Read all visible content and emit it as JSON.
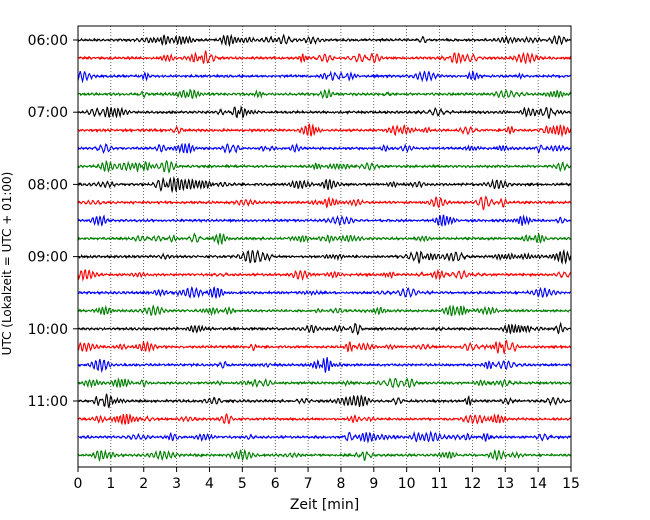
{
  "chart_data": {
    "type": "line",
    "title": "",
    "xlabel": "Zeit  [min]",
    "ylabel": "UTC (Lokalzeit = UTC + 01:00)",
    "xlim": [
      0,
      15
    ],
    "x_ticks": [
      0,
      1,
      2,
      3,
      4,
      5,
      6,
      7,
      8,
      9,
      10,
      11,
      12,
      13,
      14,
      15
    ],
    "x_tick_labels": [
      "0",
      "1",
      "2",
      "3",
      "4",
      "5",
      "6",
      "7",
      "8",
      "9",
      "10",
      "11",
      "12",
      "13",
      "14",
      "15"
    ],
    "y_tick_labels": [
      "06:00",
      "07:00",
      "08:00",
      "09:00",
      "10:00",
      "11:00"
    ],
    "y_tick_rows": [
      0,
      4,
      8,
      12,
      16,
      20
    ],
    "row_minutes": 15,
    "start_time": "06:00",
    "trace_count": 24,
    "trace_colors": [
      "#000000",
      "#ff0000",
      "#0000ff",
      "#008000"
    ],
    "vertical_grid": "dotted",
    "legend": "none"
  }
}
